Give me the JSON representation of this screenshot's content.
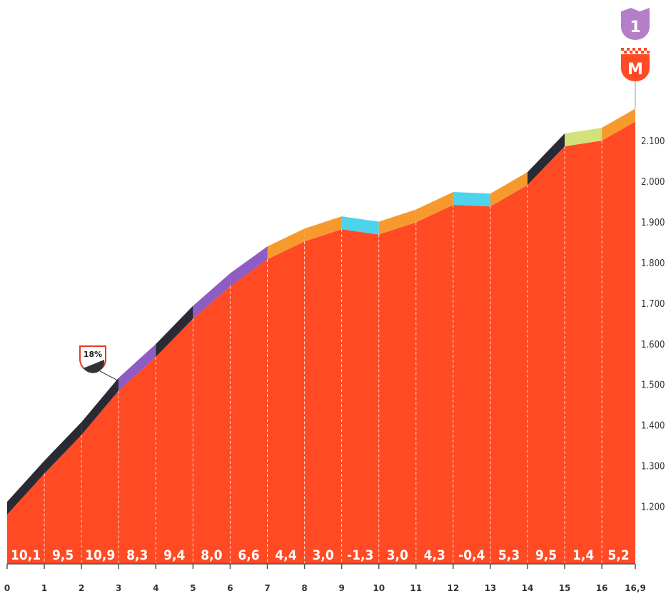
{
  "chart_data": {
    "type": "area",
    "x": [
      0,
      1,
      2,
      3,
      4,
      5,
      6,
      7,
      8,
      9,
      10,
      11,
      12,
      13,
      14,
      15,
      16,
      16.9
    ],
    "elevation": [
      1180,
      1281,
      1376,
      1485,
      1568,
      1662,
      1742,
      1808,
      1852,
      1882,
      1869,
      1899,
      1942,
      1938,
      1991,
      2086,
      2100,
      2147
    ],
    "x_tick_labels": [
      "0",
      "1",
      "2",
      "3",
      "4",
      "5",
      "6",
      "7",
      "8",
      "9",
      "10",
      "11",
      "12",
      "13",
      "14",
      "15",
      "16",
      "16,9"
    ],
    "segment_gradients": [
      "10,1",
      "9,5",
      "10,9",
      "8,3",
      "9,4",
      "8,0",
      "6,6",
      "4,4",
      "3,0",
      "-1,3",
      "3,0",
      "4,3",
      "-0,4",
      "5,3",
      "9,5",
      "1,4",
      "5,2"
    ],
    "y_ticks": [
      1200,
      1300,
      1400,
      1500,
      1600,
      1700,
      1800,
      1900,
      2000,
      2100
    ],
    "y_tick_labels": [
      "1.200",
      "1.300",
      "1.400",
      "1.500",
      "1.600",
      "1.700",
      "1.800",
      "1.900",
      "2.000",
      "2.100"
    ],
    "ylim": [
      1050,
      2300
    ],
    "xlim": [
      0,
      16.9
    ],
    "colors": {
      "fill": "#ff4a24",
      "gradient_bands": {
        "very_steep": "#2a2a34",
        "steep": "#8e5cc2",
        "moderate": "#f79a2e",
        "gentle": "#d4e07c",
        "descent": "#4ed3ec"
      }
    },
    "annotations": {
      "max_gradient": {
        "label": "18%",
        "at_km": 2.95
      },
      "category_badge": {
        "label": "1",
        "color": "#b57fc7"
      },
      "finish_badge": {
        "label": "M",
        "color": "#ff4a24"
      }
    }
  }
}
